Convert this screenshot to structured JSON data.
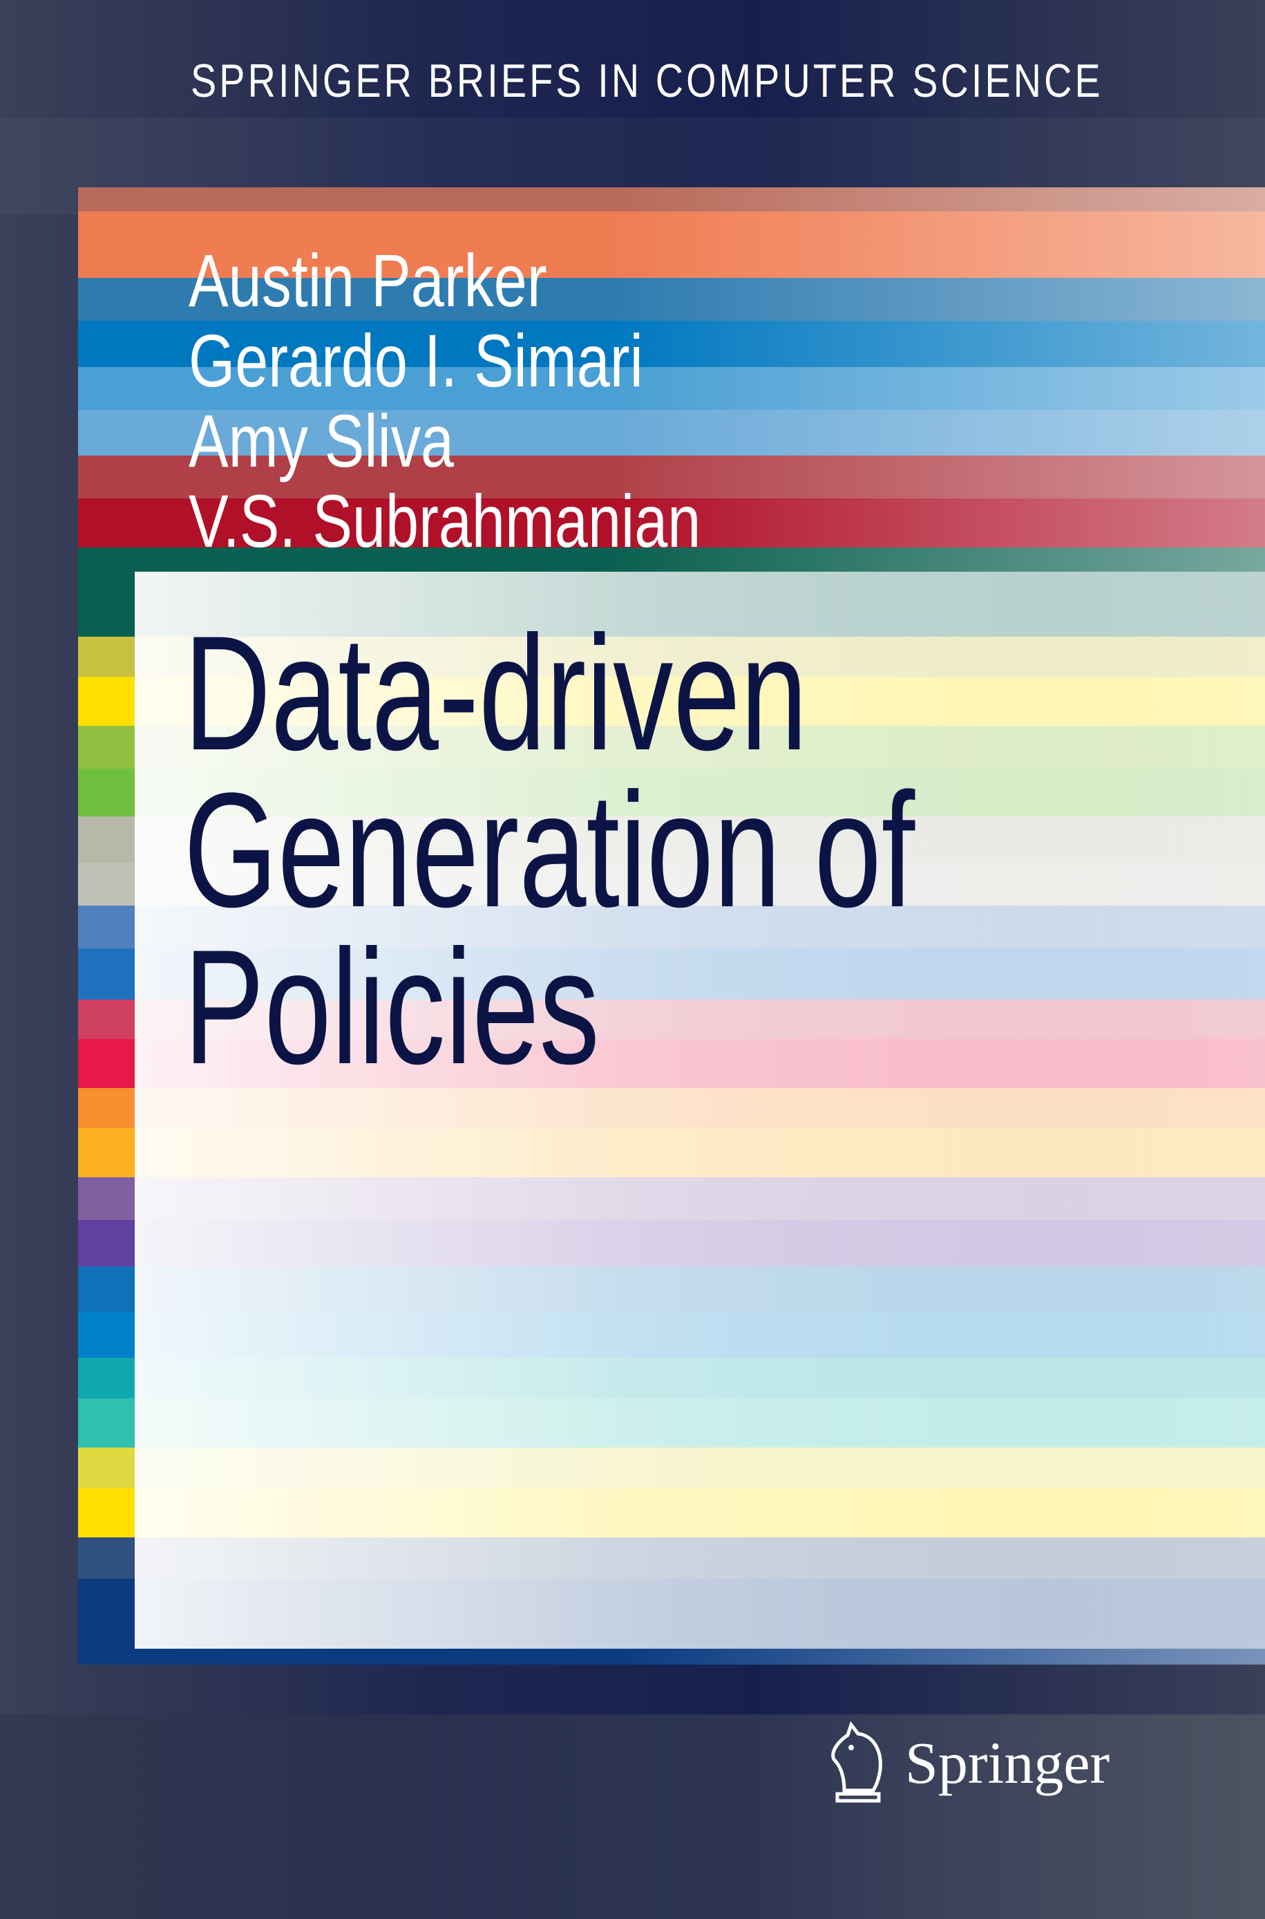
{
  "series": "SPRINGER BRIEFS IN COMPUTER SCIENCE",
  "authors": [
    "Austin Parker",
    "Gerardo I. Simari",
    "Amy Sliva",
    "V.S. Subrahmanian"
  ],
  "title_lines": [
    "Data-driven",
    "Generation of",
    "Policies"
  ],
  "publisher": {
    "name": "Springer",
    "logo_icon": "knight-horse-icon"
  },
  "colors": {
    "title_text": "#0c1446",
    "background": "#1e2650",
    "stripes": [
      "#b86a5a",
      "#f07c52",
      "#2e7bb0",
      "#0078c0",
      "#4a9fd4",
      "#6aaad8",
      "#b04048",
      "#b01028",
      "#0a6050",
      "#c8c040",
      "#ffe000",
      "#90c040",
      "#70c040",
      "#b8b8a8",
      "#c0c0b8",
      "#5080c0",
      "#2070c0",
      "#d04060",
      "#e81848",
      "#f89030",
      "#fbb020",
      "#8060a0",
      "#6040a0",
      "#1070b8",
      "#0080c8",
      "#10a8b0",
      "#30c0b0",
      "#e0d840",
      "#ffe000",
      "#305080",
      "#0a3a80"
    ]
  }
}
